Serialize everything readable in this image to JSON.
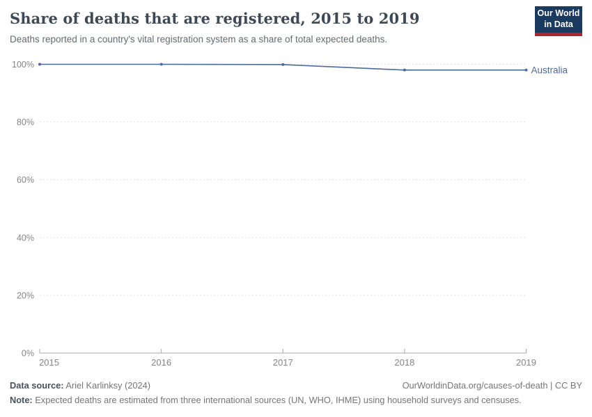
{
  "header": {
    "title": "Share of deaths that are registered, 2015 to 2019",
    "subtitle": "Deaths reported in a country's vital registration system as a share of total expected deaths."
  },
  "logo": {
    "line1": "Our World",
    "line2": "in Data",
    "bg_color": "#1b3a5f",
    "accent_color": "#b0262c"
  },
  "chart_data": {
    "type": "line",
    "title": "Share of deaths that are registered, 2015 to 2019",
    "x": [
      2015,
      2016,
      2017,
      2018,
      2019
    ],
    "series": [
      {
        "name": "Australia",
        "values": [
          100,
          100,
          99.9,
          98,
          98
        ],
        "color": "#4c6a9c"
      }
    ],
    "ylim": [
      0,
      100
    ],
    "yticks": [
      0,
      20,
      40,
      60,
      80,
      100
    ],
    "ytick_suffix": "%",
    "grid": true,
    "gridline_style": "dashed",
    "legend_position": "end-of-line",
    "axis_label_color": "#858585",
    "gridline_color": "#e2e2e2",
    "axis_line_color": "#a8a8a8"
  },
  "footer": {
    "data_source_label": "Data source:",
    "data_source_value": "Ariel Karlinksy (2024)",
    "origin_text": "OurWorldinData.org/causes-of-death | CC BY",
    "note_label": "Note:",
    "note_value": "Expected deaths are estimated from three international sources (UN, WHO, IHME) using household surveys and censuses."
  }
}
